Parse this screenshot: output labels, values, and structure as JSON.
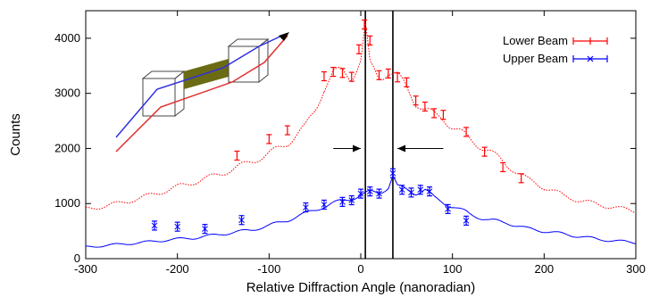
{
  "chart_data": {
    "type": "line",
    "xlabel": "Relative Diffraction Angle (nanoradian)",
    "ylabel": "Counts",
    "xlim": [
      -300,
      300
    ],
    "ylim": [
      0,
      4500
    ],
    "x_ticks": [
      -300,
      -200,
      -100,
      0,
      100,
      200,
      300
    ],
    "y_ticks": [
      0,
      1000,
      2000,
      3000,
      4000
    ],
    "legend_position": "top-right",
    "legend_order": [
      "Lower Beam",
      "Upper Beam"
    ],
    "vertical_lines_x": [
      5,
      35
    ],
    "annotation_arrows": [
      {
        "from_x": -30,
        "to_x": 0,
        "y": 2000
      },
      {
        "from_x": 90,
        "to_x": 40,
        "y": 2000
      }
    ],
    "series": [
      {
        "name": "Lower Beam",
        "color": "#ff0000",
        "marker": "errorbar",
        "curve": [
          [
            -300,
            900
          ],
          [
            -280,
            950
          ],
          [
            -260,
            1020
          ],
          [
            -240,
            1100
          ],
          [
            -220,
            1200
          ],
          [
            -200,
            1300
          ],
          [
            -180,
            1400
          ],
          [
            -160,
            1500
          ],
          [
            -140,
            1620
          ],
          [
            -120,
            1760
          ],
          [
            -100,
            1900
          ],
          [
            -80,
            2100
          ],
          [
            -60,
            2400
          ],
          [
            -50,
            2700
          ],
          [
            -40,
            3100
          ],
          [
            -30,
            3350
          ],
          [
            -20,
            3400
          ],
          [
            -10,
            3300
          ],
          [
            0,
            3600
          ],
          [
            5,
            4200
          ],
          [
            10,
            3500
          ],
          [
            20,
            3300
          ],
          [
            30,
            3400
          ],
          [
            40,
            3300
          ],
          [
            50,
            3100
          ],
          [
            60,
            2850
          ],
          [
            70,
            2700
          ],
          [
            80,
            2600
          ],
          [
            90,
            2550
          ],
          [
            100,
            2400
          ],
          [
            120,
            2150
          ],
          [
            140,
            1950
          ],
          [
            160,
            1700
          ],
          [
            180,
            1450
          ],
          [
            200,
            1300
          ],
          [
            220,
            1150
          ],
          [
            240,
            1050
          ],
          [
            260,
            980
          ],
          [
            280,
            920
          ],
          [
            300,
            860
          ]
        ],
        "points": [
          [
            -135,
            1870
          ],
          [
            -100,
            2170
          ],
          [
            -80,
            2330
          ],
          [
            -40,
            3310
          ],
          [
            -30,
            3390
          ],
          [
            -20,
            3370
          ],
          [
            -10,
            3300
          ],
          [
            -2,
            3800
          ],
          [
            4,
            4250
          ],
          [
            10,
            3960
          ],
          [
            20,
            3330
          ],
          [
            30,
            3360
          ],
          [
            40,
            3290
          ],
          [
            50,
            3200
          ],
          [
            60,
            2870
          ],
          [
            70,
            2760
          ],
          [
            80,
            2640
          ],
          [
            90,
            2610
          ],
          [
            115,
            2300
          ],
          [
            135,
            1940
          ],
          [
            155,
            1660
          ],
          [
            175,
            1460
          ]
        ]
      },
      {
        "name": "Upper Beam",
        "color": "#0000ff",
        "marker": "errorbar",
        "curve": [
          [
            -300,
            210
          ],
          [
            -270,
            250
          ],
          [
            -240,
            290
          ],
          [
            -210,
            340
          ],
          [
            -180,
            380
          ],
          [
            -150,
            450
          ],
          [
            -120,
            520
          ],
          [
            -100,
            600
          ],
          [
            -80,
            700
          ],
          [
            -60,
            820
          ],
          [
            -40,
            950
          ],
          [
            -20,
            1050
          ],
          [
            0,
            1150
          ],
          [
            10,
            1200
          ],
          [
            20,
            1200
          ],
          [
            30,
            1300
          ],
          [
            35,
            1500
          ],
          [
            40,
            1300
          ],
          [
            50,
            1250
          ],
          [
            60,
            1200
          ],
          [
            70,
            1250
          ],
          [
            80,
            1100
          ],
          [
            100,
            950
          ],
          [
            120,
            800
          ],
          [
            140,
            700
          ],
          [
            160,
            650
          ],
          [
            180,
            550
          ],
          [
            200,
            500
          ],
          [
            220,
            450
          ],
          [
            240,
            400
          ],
          [
            260,
            350
          ],
          [
            280,
            320
          ],
          [
            300,
            290
          ]
        ],
        "points": [
          [
            -225,
            600
          ],
          [
            -200,
            580
          ],
          [
            -170,
            540
          ],
          [
            -130,
            700
          ],
          [
            -60,
            930
          ],
          [
            -40,
            980
          ],
          [
            -20,
            1030
          ],
          [
            -10,
            1060
          ],
          [
            0,
            1180
          ],
          [
            10,
            1220
          ],
          [
            20,
            1180
          ],
          [
            35,
            1550
          ],
          [
            45,
            1250
          ],
          [
            55,
            1200
          ],
          [
            65,
            1250
          ],
          [
            75,
            1220
          ],
          [
            95,
            900
          ],
          [
            115,
            690
          ]
        ]
      }
    ]
  },
  "inset_icon": "beam-splitter-diagram-icon"
}
